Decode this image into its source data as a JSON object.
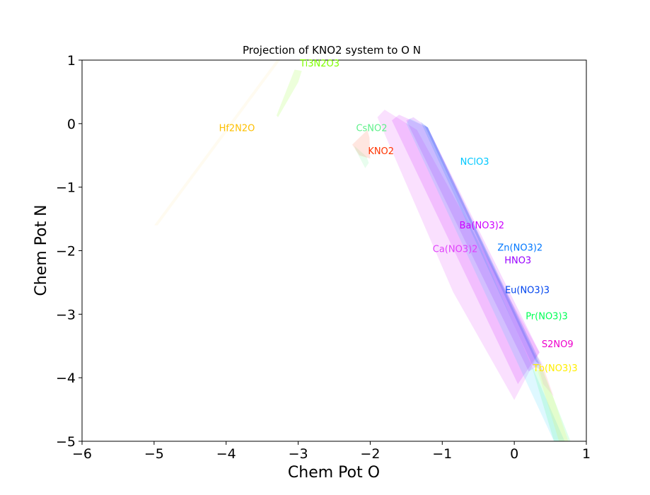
{
  "chart_data": {
    "type": "area",
    "title": "Projection of KNO2 system to O N",
    "xlabel": "Chem Pot O",
    "ylabel": "Chem Pot N",
    "xlim": [
      -6,
      1
    ],
    "ylim": [
      -5,
      1
    ],
    "xticks": [
      -6,
      -5,
      -4,
      -3,
      -2,
      -1,
      0,
      1
    ],
    "xtick_labels": [
      "−6",
      "−5",
      "−4",
      "−3",
      "−2",
      "−1",
      "0",
      "1"
    ],
    "yticks": [
      -5,
      -4,
      -3,
      -2,
      -1,
      0,
      1
    ],
    "ytick_labels": [
      "−5",
      "−4",
      "−3",
      "−2",
      "−1",
      "0",
      "1"
    ],
    "grid": false,
    "regions": [
      {
        "name": "Hf2N2O",
        "color": "#fdbf00",
        "opacity": 0.06,
        "points": [
          [
            -5.0,
            -1.6
          ],
          [
            -3.3,
            1.0
          ],
          [
            -3.25,
            1.0
          ],
          [
            -4.95,
            -1.6
          ]
        ],
        "label_at": [
          -3.85,
          -0.12
        ]
      },
      {
        "name": "Ti3N2O3",
        "color": "#7fff00",
        "opacity": 0.14,
        "points": [
          [
            -3.3,
            0.13
          ],
          [
            -3.05,
            0.85
          ],
          [
            -2.95,
            0.83
          ],
          [
            -3.0,
            0.65
          ],
          [
            -3.28,
            0.1
          ]
        ],
        "label_at": [
          -2.7,
          0.9
        ]
      },
      {
        "name": "CsNO2",
        "color": "#5ff08a",
        "opacity": 0.14,
        "points": [
          [
            -2.22,
            -0.35
          ],
          [
            -2.05,
            -0.52
          ],
          [
            -2.02,
            -0.62
          ],
          [
            -2.07,
            -0.7
          ],
          [
            -2.2,
            -0.42
          ]
        ],
        "label_at": [
          -1.98,
          -0.12
        ]
      },
      {
        "name": "KNO2",
        "color": "#ff3300",
        "opacity": 0.12,
        "points": [
          [
            -2.25,
            -0.33
          ],
          [
            -2.04,
            -0.1
          ],
          [
            -2.01,
            -0.22
          ],
          [
            -2.0,
            -0.55
          ],
          [
            -2.15,
            -0.5
          ]
        ],
        "label_at": [
          -1.85,
          -0.48
        ]
      },
      {
        "name": "Ca(NO3)2",
        "color": "#e040fb",
        "opacity": 0.16,
        "points": [
          [
            -1.8,
            0.22
          ],
          [
            -1.35,
            -0.1
          ],
          [
            0.35,
            -3.6
          ],
          [
            0.0,
            -4.35
          ],
          [
            -0.85,
            -2.65
          ],
          [
            -1.9,
            0.1
          ]
        ],
        "label_at": [
          -0.82,
          -2.02
        ]
      },
      {
        "name": "Ba(NO3)2",
        "color": "#cc00ff",
        "opacity": 0.15,
        "points": [
          [
            -1.6,
            0.14
          ],
          [
            -1.2,
            -0.06
          ],
          [
            0.35,
            -3.6
          ],
          [
            0.05,
            -4.1
          ],
          [
            -1.7,
            0.05
          ]
        ],
        "label_at": [
          -0.45,
          -1.65
        ]
      },
      {
        "name": "HNO3",
        "color": "#9900ff",
        "opacity": 0.15,
        "points": [
          [
            -1.4,
            0.1
          ],
          [
            -1.2,
            -0.06
          ],
          [
            0.35,
            -3.8
          ],
          [
            0.2,
            -3.9
          ],
          [
            -1.5,
            0.05
          ]
        ],
        "label_at": [
          0.05,
          -2.2
        ]
      },
      {
        "name": "NClO3",
        "color": "#00c8ff",
        "opacity": 0.13,
        "points": [
          [
            -1.45,
            0.08
          ],
          [
            -1.2,
            -0.06
          ],
          [
            0.7,
            -5.0
          ],
          [
            0.55,
            -5.0
          ],
          [
            -1.5,
            0.0
          ]
        ],
        "label_at": [
          -0.55,
          -0.65
        ]
      },
      {
        "name": "Zn(NO3)2",
        "color": "#0077ff",
        "opacity": 0.15,
        "points": [
          [
            -1.3,
            0.03
          ],
          [
            -1.2,
            -0.06
          ],
          [
            0.4,
            -3.9
          ],
          [
            0.25,
            -3.8
          ]
        ],
        "label_at": [
          0.08,
          -2.0
        ]
      },
      {
        "name": "Eu(NO3)3",
        "color": "#0044ee",
        "opacity": 0.18,
        "points": [
          [
            -1.25,
            -0.02
          ],
          [
            -1.2,
            -0.06
          ],
          [
            0.38,
            -3.8
          ],
          [
            0.3,
            -3.75
          ]
        ],
        "label_at": [
          0.18,
          -2.67
        ]
      },
      {
        "name": "Pr(NO3)3",
        "color": "#00ff55",
        "opacity": 0.12,
        "points": [
          [
            0.25,
            -3.85
          ],
          [
            0.4,
            -3.9
          ],
          [
            0.78,
            -5.0
          ],
          [
            0.55,
            -5.0
          ]
        ],
        "label_at": [
          0.45,
          -3.08
        ]
      },
      {
        "name": "S2NO9",
        "color": "#ee00cc",
        "opacity": 0.08,
        "points": [
          [
            0.28,
            -3.6
          ],
          [
            0.38,
            -3.75
          ],
          [
            0.55,
            -4.3
          ],
          [
            0.4,
            -4.1
          ]
        ],
        "label_at": [
          0.6,
          -3.52
        ]
      },
      {
        "name": "Tb(NO3)3",
        "color": "#ffee00",
        "opacity": 0.12,
        "points": [
          [
            0.3,
            -3.8
          ],
          [
            0.42,
            -3.9
          ],
          [
            0.75,
            -5.0
          ],
          [
            0.62,
            -5.0
          ]
        ],
        "label_at": [
          0.57,
          -3.9
        ]
      }
    ]
  }
}
